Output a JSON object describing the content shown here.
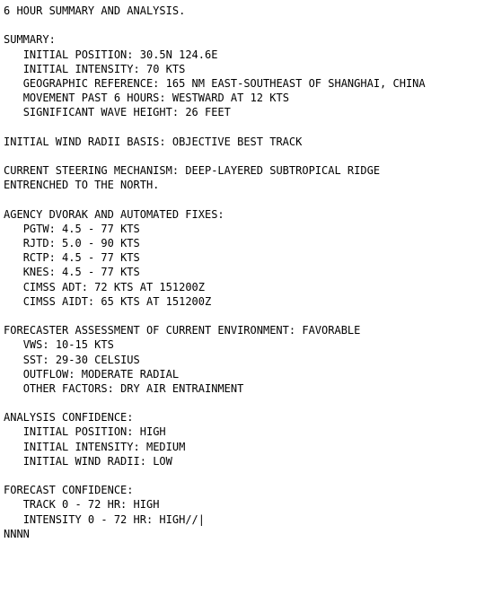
{
  "header": "6 HOUR SUMMARY AND ANALYSIS.",
  "summary": {
    "title": "SUMMARY:",
    "initial_position_label": "INITIAL POSITION:",
    "initial_position_value": "30.5N 124.6E",
    "initial_intensity_label": "INITIAL INTENSITY:",
    "initial_intensity_value": "70 KTS",
    "geo_ref_label": "GEOGRAPHIC REFERENCE:",
    "geo_ref_value": "165 NM EAST-SOUTHEAST OF SHANGHAI, CHINA",
    "movement_label": "MOVEMENT PAST 6 HOURS:",
    "movement_value": "WESTWARD AT 12 KTS",
    "swh_label": "SIGNIFICANT WAVE HEIGHT:",
    "swh_value": "26 FEET"
  },
  "wind_radii_basis_label": "INITIAL WIND RADII BASIS:",
  "wind_radii_basis_value": "OBJECTIVE BEST TRACK",
  "steering_label": "CURRENT STEERING MECHANISM:",
  "steering_value_line1": "DEEP-LAYERED SUBTROPICAL RIDGE",
  "steering_value_line2": "ENTRENCHED TO THE NORTH.",
  "dvorak": {
    "title": "AGENCY DVORAK AND AUTOMATED FIXES:",
    "pgtw_label": "PGTW:",
    "pgtw_value": "4.5 - 77 KTS",
    "rjtd_label": "RJTD:",
    "rjtd_value": "5.0 - 90 KTS",
    "rctp_label": "RCTP:",
    "rctp_value": "4.5 - 77 KTS",
    "knes_label": "KNES:",
    "knes_value": "4.5 - 77 KTS",
    "cimss_adt_label": "CIMSS ADT:",
    "cimss_adt_value": "72 KTS AT 151200Z",
    "cimss_aidt_label": "CIMSS AIDT:",
    "cimss_aidt_value": "65 KTS AT 151200Z"
  },
  "env": {
    "title": "FORECASTER ASSESSMENT OF CURRENT ENVIRONMENT:",
    "overall": "FAVORABLE",
    "vws_label": "VWS:",
    "vws_value": "10-15 KTS",
    "sst_label": "SST:",
    "sst_value": "29-30 CELSIUS",
    "outflow_label": "OUTFLOW:",
    "outflow_value": "MODERATE RADIAL",
    "other_label": "OTHER FACTORS:",
    "other_value": "DRY AIR ENTRAINMENT"
  },
  "analysis_conf": {
    "title": "ANALYSIS CONFIDENCE:",
    "pos_label": "INITIAL POSITION:",
    "pos_value": "HIGH",
    "int_label": "INITIAL INTENSITY:",
    "int_value": "MEDIUM",
    "wr_label": "INITIAL WIND RADII:",
    "wr_value": "LOW"
  },
  "forecast_conf": {
    "title": "FORECAST CONFIDENCE:",
    "track_label": "TRACK 0 - 72 HR:",
    "track_value": "HIGH",
    "intensity_label": "INTENSITY 0 - 72 HR:",
    "intensity_value": "HIGH//"
  },
  "terminator": "NNNN",
  "cursor": "|"
}
